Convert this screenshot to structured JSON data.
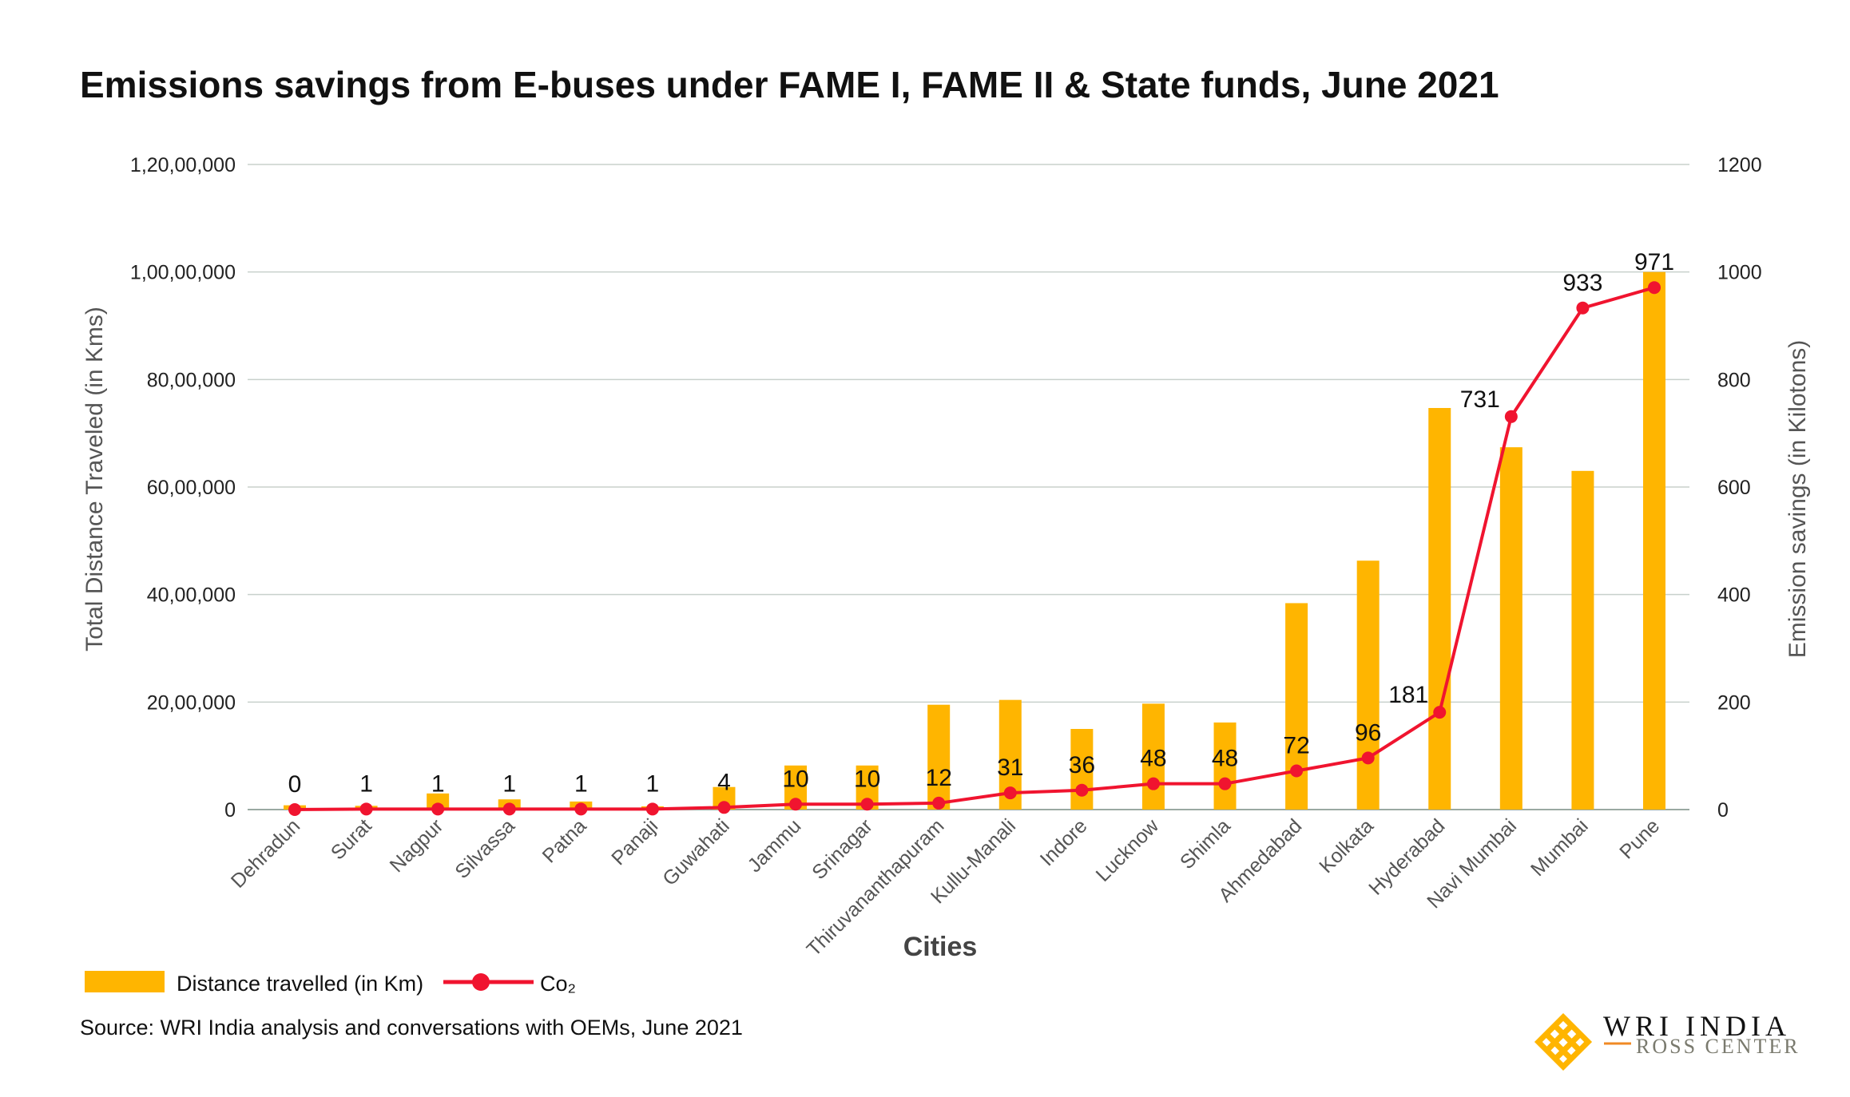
{
  "chart_data": {
    "type": "bar+line",
    "title": "Emissions savings from E-buses under FAME I, FAME II & State funds, June 2021",
    "xlabel": "Cities",
    "ylabel_left": "Total Distance Traveled (in Kms)",
    "ylabel_right": "Emission savings (in Kilotons)",
    "ylim_left": [
      0,
      12000000
    ],
    "ylim_right": [
      0,
      1200
    ],
    "left_ticks": [
      "0",
      "20,00,000",
      "40,00,000",
      "60,00,000",
      "80,00,000",
      "1,00,00,000",
      "1,20,00,000"
    ],
    "right_ticks": [
      "0",
      "200",
      "400",
      "600",
      "800",
      "1000",
      "1200"
    ],
    "grid": true,
    "legend_position": "bottom-left",
    "categories": [
      "Dehradun",
      "Surat",
      "Nagpur",
      "Silvassa",
      "Patna",
      "Panaji",
      "Guwahati",
      "Jammu",
      "Srinagar",
      "Thiruvananthapuram",
      "Kullu-Manali",
      "Indore",
      "Lucknow",
      "Shimla",
      "Ahmedabad",
      "Kolkata",
      "Hyderabad",
      "Navi Mumbai",
      "Mumbai",
      "Pune"
    ],
    "series": [
      {
        "name": "Distance travelled (in Km)",
        "type": "bar",
        "axis": "left",
        "color": "#FFB500",
        "values": [
          80000,
          70000,
          300000,
          190000,
          150000,
          60000,
          420000,
          820000,
          820000,
          1950000,
          2040000,
          1500000,
          1970000,
          1620000,
          3840000,
          4630000,
          7470000,
          6740000,
          6300000,
          10000000
        ]
      },
      {
        "name": "Co₂",
        "type": "line",
        "axis": "right",
        "color": "#F0142F",
        "values": [
          0,
          1,
          1,
          1,
          1,
          1,
          4,
          10,
          10,
          12,
          31,
          36,
          48,
          48,
          72,
          96,
          181,
          731,
          933,
          971
        ]
      }
    ]
  },
  "source": "Source: WRI India analysis and conversations with OEMs, June 2021",
  "logo": {
    "line1": "WRI INDIA",
    "line2": "ROSS CENTER"
  }
}
